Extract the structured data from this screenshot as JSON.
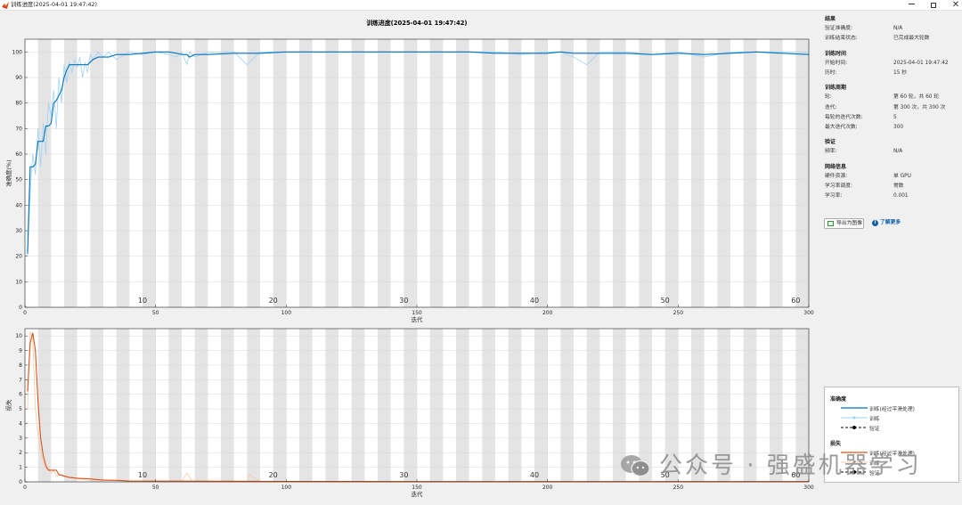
{
  "window": {
    "title": "训练进度(2025-04-01 19:47:42)",
    "app_icon": "matlab-icon",
    "min_icon": "minimize-icon",
    "max_icon": "maximize-icon",
    "close_icon": "close-icon",
    "close_glyph": "✕"
  },
  "chart_data": [
    {
      "type": "line",
      "title": "训练进度(2025-04-01 19:47:42)",
      "xlabel": "迭代",
      "ylabel": "准确度(%)",
      "xlim": [
        0,
        300
      ],
      "ylim": [
        0,
        105
      ],
      "x_ticks": [
        "0",
        "50",
        "100",
        "150",
        "200",
        "250",
        "300"
      ],
      "y_ticks": [
        "0",
        "10",
        "20",
        "30",
        "40",
        "50",
        "60",
        "70",
        "80",
        "90",
        "100"
      ],
      "epoch_labels": [
        "10",
        "20",
        "30",
        "40",
        "50",
        "60"
      ],
      "iterations_per_epoch": 5,
      "grid": true,
      "colors": {
        "smoothed": "#0072bd",
        "raw": "#9fd3f5",
        "band": "#e4e4e4"
      },
      "series": [
        {
          "name": "训练(经过平滑处理)",
          "x": [
            1,
            2,
            3,
            4,
            5,
            6,
            7,
            8,
            9,
            10,
            11,
            12,
            13,
            14,
            15,
            16,
            17,
            18,
            19,
            20,
            22,
            24,
            26,
            28,
            30,
            32,
            35,
            40,
            45,
            50,
            55,
            58,
            60,
            62,
            63,
            65,
            70,
            80,
            90,
            100,
            110,
            120,
            130,
            140,
            150,
            160,
            170,
            180,
            190,
            200,
            205,
            210,
            220,
            230,
            240,
            250,
            260,
            270,
            280,
            290,
            300
          ],
          "y": [
            21,
            55,
            55,
            56,
            65,
            65,
            65,
            71,
            71,
            72,
            80,
            81,
            83,
            85,
            90,
            93,
            95,
            95,
            95,
            95,
            95,
            95,
            97,
            98,
            98,
            98,
            99,
            99,
            99.5,
            100,
            100,
            99.5,
            99,
            99,
            98,
            99,
            99,
            99.5,
            99.5,
            100,
            100,
            100,
            100,
            100,
            100,
            100,
            100,
            99.5,
            99.5,
            99.5,
            100,
            99.5,
            99.5,
            99.5,
            99,
            99.5,
            99,
            99.5,
            100,
            99.5,
            99
          ]
        },
        {
          "name": "训练",
          "x": [
            1,
            2,
            3,
            4,
            5,
            6,
            7,
            8,
            9,
            10,
            11,
            12,
            13,
            14,
            15,
            16,
            17,
            18,
            19,
            20,
            21,
            22,
            23,
            24,
            25,
            26,
            28,
            30,
            32,
            35,
            40,
            45,
            50,
            55,
            58,
            60,
            62,
            63,
            65,
            70,
            80,
            85,
            90,
            100,
            110,
            120,
            130,
            140,
            150,
            160,
            170,
            180,
            190,
            200,
            205,
            210,
            215,
            220,
            230,
            240,
            250,
            260,
            270,
            280,
            290,
            300
          ],
          "y": [
            20,
            45,
            60,
            52,
            70,
            55,
            72,
            60,
            80,
            75,
            85,
            70,
            90,
            80,
            95,
            88,
            96,
            92,
            97,
            94,
            98,
            90,
            96,
            92,
            99,
            97,
            100,
            98,
            100,
            97,
            100,
            99,
            100,
            99,
            98,
            100,
            95,
            100,
            98,
            100,
            100,
            95,
            100,
            100,
            100,
            100,
            100,
            100,
            100,
            100,
            100,
            100,
            99,
            100,
            100,
            98,
            95,
            100,
            100,
            99,
            100,
            98,
            100,
            100,
            100,
            100
          ]
        }
      ]
    },
    {
      "type": "line",
      "xlabel": "迭代",
      "ylabel": "损失",
      "xlim": [
        0,
        300
      ],
      "ylim": [
        0,
        10.5
      ],
      "x_ticks": [
        "0",
        "50",
        "100",
        "150",
        "200",
        "250",
        "300"
      ],
      "y_ticks": [
        "0",
        "1",
        "2",
        "3",
        "4",
        "5",
        "6",
        "7",
        "8",
        "9",
        "10"
      ],
      "epoch_labels": [
        "10",
        "20",
        "30",
        "40",
        "50",
        "60"
      ],
      "iterations_per_epoch": 5,
      "grid": true,
      "colors": {
        "smoothed": "#d95319",
        "raw": "#f5c9a8",
        "band": "#e4e4e4"
      },
      "series": [
        {
          "name": "训练(经过平滑处理)",
          "x": [
            1,
            2,
            3,
            4,
            5,
            6,
            7,
            8,
            9,
            10,
            11,
            12,
            13,
            15,
            17,
            20,
            25,
            30,
            35,
            40,
            50,
            60,
            80,
            100,
            150,
            200,
            250,
            300
          ],
          "y": [
            6.2,
            9.5,
            10.2,
            9.0,
            5.5,
            3.0,
            1.8,
            1.1,
            0.8,
            0.8,
            0.8,
            0.8,
            0.5,
            0.4,
            0.3,
            0.25,
            0.2,
            0.12,
            0.1,
            0.06,
            0.05,
            0.05,
            0.04,
            0.03,
            0.02,
            0.02,
            0.02,
            0.02
          ]
        },
        {
          "name": "训练",
          "x": [
            1,
            2,
            3,
            4,
            5,
            6,
            7,
            8,
            9,
            10,
            11,
            12,
            14,
            16,
            18,
            20,
            25,
            30,
            40,
            50,
            60,
            62,
            64,
            70,
            85,
            86,
            90,
            100,
            150,
            200,
            250,
            300
          ],
          "y": [
            5.0,
            10.3,
            9.8,
            5.0,
            3.2,
            2.0,
            1.4,
            0.9,
            1.0,
            0.6,
            0.8,
            0.4,
            0.5,
            0.3,
            0.35,
            0.2,
            0.1,
            0.15,
            0.05,
            0.05,
            0.02,
            0.6,
            0.03,
            0.02,
            0.02,
            0.5,
            0.02,
            0.01,
            0.01,
            0.01,
            0.01,
            0.01
          ]
        }
      ]
    }
  ],
  "info": {
    "sections": [
      {
        "title": "结果",
        "rows": [
          {
            "k": "验证准确度:",
            "v": "N/A"
          },
          {
            "k": "训练结束状态:",
            "v": "已完成最大轮数"
          }
        ]
      },
      {
        "title": "训练时间",
        "rows": [
          {
            "k": "开始时间:",
            "v": "2025-04-01 19:47:42"
          },
          {
            "k": "历时:",
            "v": "15 秒"
          }
        ]
      },
      {
        "title": "训练周期",
        "rows": [
          {
            "k": "轮:",
            "v": "第 60 轮，共 60 轮"
          },
          {
            "k": "迭代:",
            "v": "第 300 次，共 300 次"
          },
          {
            "k": "每轮的迭代次数:",
            "v": "5"
          },
          {
            "k": "最大迭代次数:",
            "v": "300"
          }
        ]
      },
      {
        "title": "验证",
        "rows": [
          {
            "k": "频率:",
            "v": "N/A"
          }
        ]
      },
      {
        "title": "网络信息",
        "rows": [
          {
            "k": "硬件资源:",
            "v": "单 GPU"
          },
          {
            "k": "学习率调度:",
            "v": "常数"
          },
          {
            "k": "学习率:",
            "v": "0.001"
          }
        ]
      }
    ]
  },
  "buttons": {
    "export_label": "导出为图像",
    "export_icon": "export-image-icon",
    "learn_more_label": "了解更多",
    "learn_more_icon": "info-icon",
    "info_glyph": "i"
  },
  "legend": {
    "accuracy_title": "准确度",
    "loss_title": "损失",
    "smoothed_label": "训练(经过平滑处理)",
    "train_label": "训练",
    "validation_label": "验证",
    "accuracy_colors": {
      "smoothed": "#0072bd",
      "raw": "#9fd3f5"
    },
    "loss_colors": {
      "smoothed": "#d95319",
      "raw": "#f5c9a8"
    }
  },
  "watermark": {
    "text": "公众号 · 强盛机器学习",
    "logo_icon": "wechat-logo-icon"
  }
}
